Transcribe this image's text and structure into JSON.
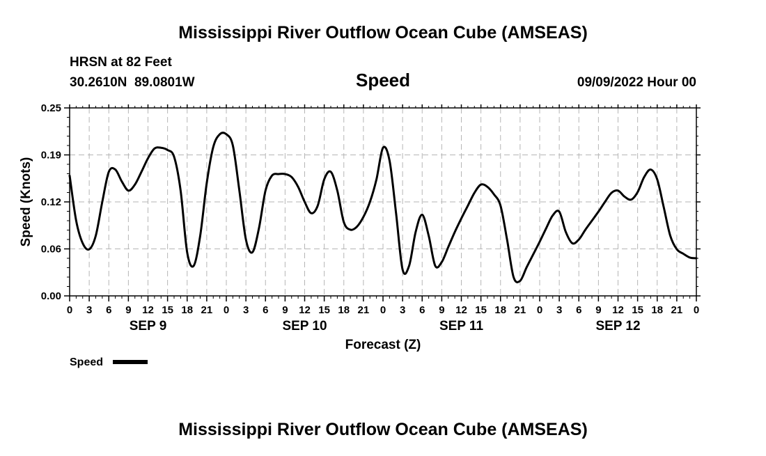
{
  "title": "Mississippi River Outflow Ocean Cube (AMSEAS)",
  "station": "HRSN at 82 Feet",
  "location": "30.2610N  89.0801W",
  "variable": "Speed",
  "datetime": "09/09/2022 Hour 00",
  "footer_title": "Mississippi River Outflow Ocean Cube (AMSEAS)",
  "chart_data": {
    "type": "line",
    "xlabel": "Forecast (Z)",
    "ylabel": "Speed (Knots)",
    "x_unit": "hours from 09/09/2022 00Z",
    "xlim": [
      0,
      96
    ],
    "ylim": [
      0,
      0.25
    ],
    "yticks": [
      "0.00",
      "0.06",
      "0.12",
      "0.19",
      "0.25"
    ],
    "xtick_labels": [
      "0",
      "3",
      "6",
      "9",
      "12",
      "15",
      "18",
      "21",
      "0",
      "3",
      "6",
      "9",
      "12",
      "15",
      "18",
      "21",
      "0",
      "3",
      "6",
      "9",
      "12",
      "15",
      "18",
      "21",
      "0",
      "3",
      "6",
      "9",
      "12",
      "15",
      "18",
      "21",
      "0"
    ],
    "day_labels": [
      "SEP 9",
      "SEP 10",
      "SEP 11",
      "SEP 12"
    ],
    "grid": true,
    "series": [
      {
        "name": "Speed",
        "color": "#000000",
        "x": [
          0,
          1,
          2,
          3,
          4,
          5,
          6,
          7,
          8,
          9,
          10,
          11,
          12,
          13,
          14,
          15,
          16,
          17,
          18,
          19,
          20,
          21,
          22,
          23,
          24,
          25,
          26,
          27,
          28,
          29,
          30,
          31,
          32,
          33,
          34,
          35,
          36,
          37,
          38,
          39,
          40,
          41,
          42,
          43,
          44,
          45,
          46,
          47,
          48,
          49,
          50,
          51,
          52,
          53,
          54,
          55,
          56,
          57,
          58,
          59,
          60,
          61,
          62,
          63,
          64,
          65,
          66,
          67,
          68,
          69,
          70,
          71,
          72,
          73,
          74,
          75,
          76,
          77,
          78,
          79,
          80,
          81,
          82,
          83,
          84,
          85,
          86,
          87,
          88,
          89,
          90,
          91,
          92,
          93,
          94,
          95,
          96
        ],
        "values": [
          0.16,
          0.1,
          0.07,
          0.062,
          0.08,
          0.125,
          0.165,
          0.168,
          0.152,
          0.14,
          0.148,
          0.165,
          0.183,
          0.196,
          0.197,
          0.194,
          0.185,
          0.14,
          0.058,
          0.04,
          0.08,
          0.15,
          0.198,
          0.215,
          0.215,
          0.2,
          0.14,
          0.075,
          0.058,
          0.09,
          0.14,
          0.16,
          0.162,
          0.162,
          0.158,
          0.145,
          0.125,
          0.11,
          0.12,
          0.155,
          0.165,
          0.14,
          0.098,
          0.088,
          0.092,
          0.105,
          0.125,
          0.155,
          0.197,
          0.18,
          0.11,
          0.035,
          0.04,
          0.085,
          0.108,
          0.08,
          0.04,
          0.045,
          0.065,
          0.085,
          0.103,
          0.12,
          0.137,
          0.148,
          0.145,
          0.135,
          0.12,
          0.075,
          0.025,
          0.02,
          0.038,
          0.055,
          0.072,
          0.09,
          0.107,
          0.112,
          0.085,
          0.07,
          0.075,
          0.088,
          0.1,
          0.112,
          0.125,
          0.137,
          0.14,
          0.132,
          0.128,
          0.138,
          0.158,
          0.168,
          0.155,
          0.118,
          0.08,
          0.062,
          0.056,
          0.051,
          0.05
        ]
      }
    ]
  },
  "legend": {
    "label": "Speed"
  }
}
